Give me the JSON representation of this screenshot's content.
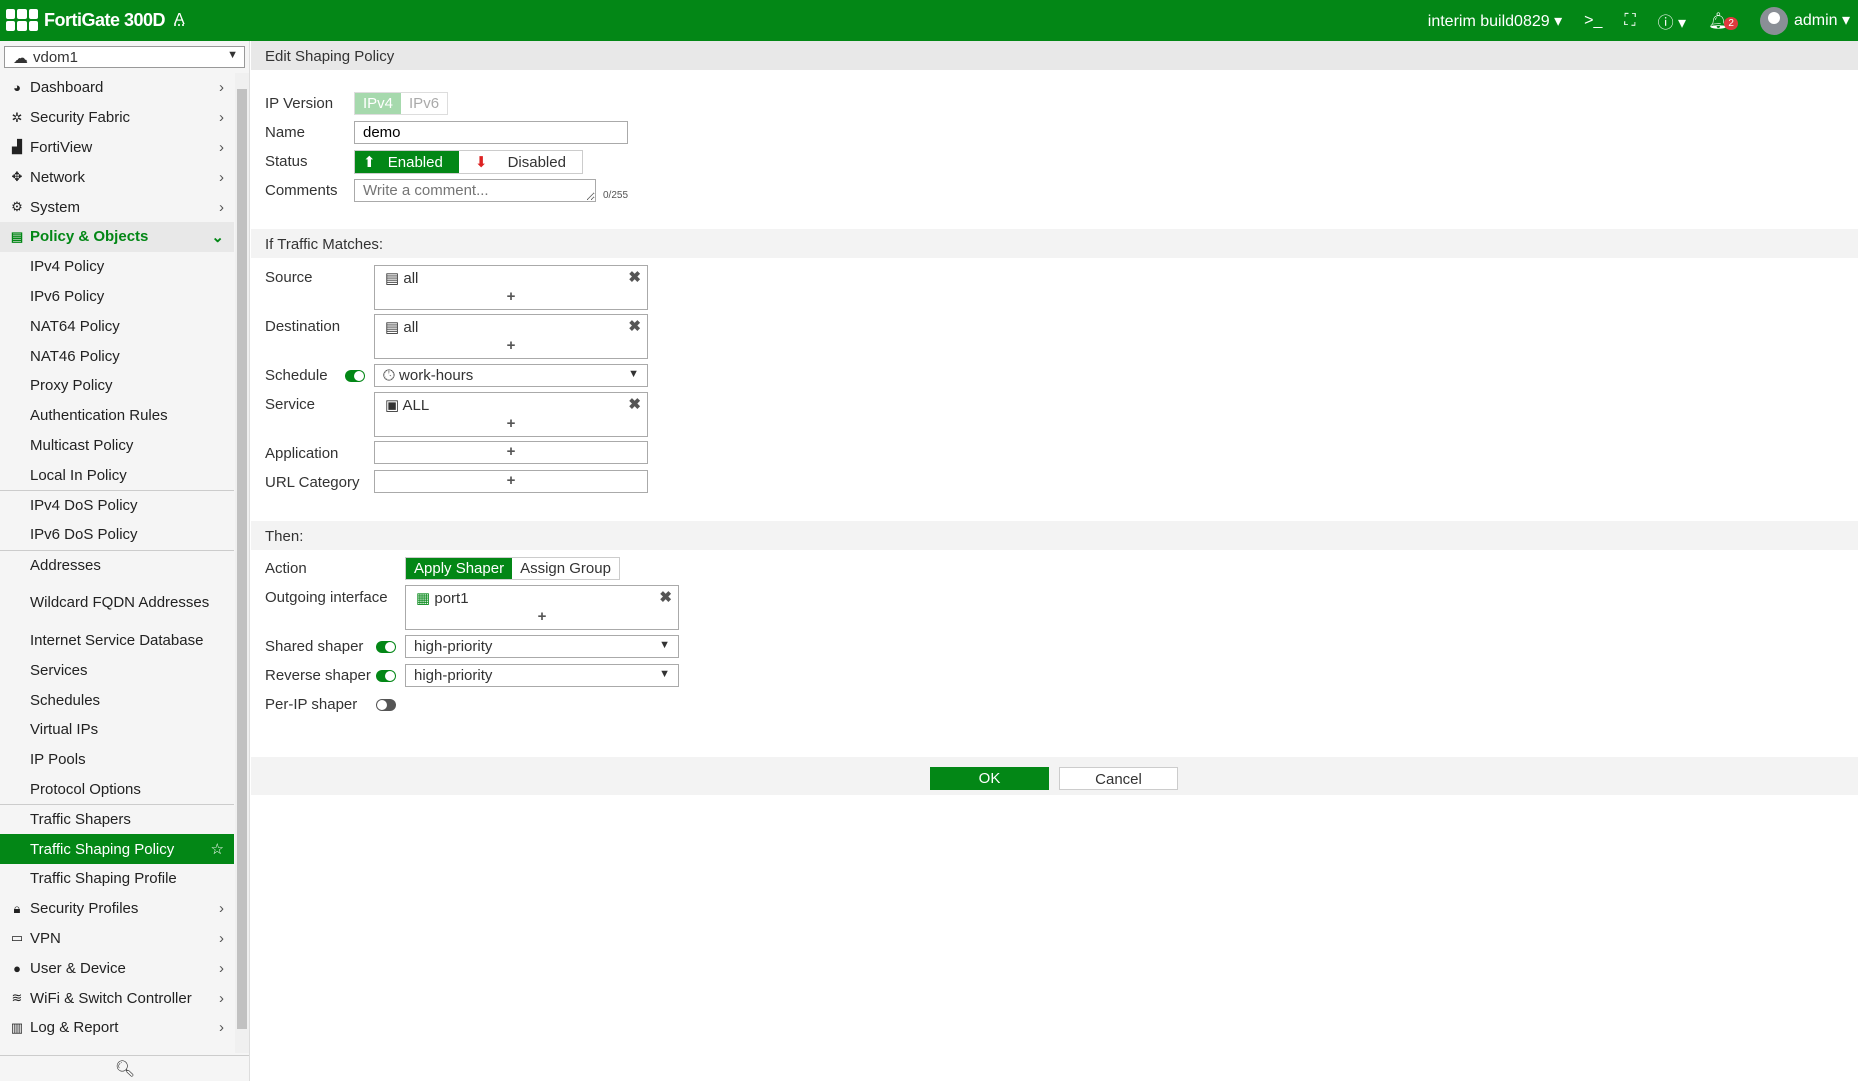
{
  "header": {
    "product": "FortiGate 300D",
    "a_label": "A",
    "build": "interim build0829",
    "cli_icon": "terminal-icon",
    "fullscreen_icon": "fullscreen-icon",
    "help_icon": "help-icon",
    "notifications": "2",
    "user": "admin",
    "accent": "#038716"
  },
  "sidebar": {
    "vdom": "vdom1",
    "items": [
      {
        "label": "Dashboard",
        "icon": "dashboard-icon",
        "chev": true
      },
      {
        "label": "Security Fabric",
        "icon": "fabric-icon",
        "chev": true
      },
      {
        "label": "FortiView",
        "icon": "chart-icon",
        "chev": true
      },
      {
        "label": "Network",
        "icon": "network-icon",
        "chev": true
      },
      {
        "label": "System",
        "icon": "gear-icon",
        "chev": true
      },
      {
        "label": "Policy & Objects",
        "icon": "policy-icon",
        "group": true
      },
      {
        "label": "IPv4 Policy"
      },
      {
        "label": "IPv6 Policy"
      },
      {
        "label": "NAT64 Policy"
      },
      {
        "label": "NAT46 Policy"
      },
      {
        "label": "Proxy Policy"
      },
      {
        "label": "Authentication Rules"
      },
      {
        "label": "Multicast Policy"
      },
      {
        "label": "Local In Policy"
      },
      {
        "label": "IPv4 DoS Policy",
        "divider": true
      },
      {
        "label": "IPv6 DoS Policy"
      },
      {
        "label": "Addresses",
        "divider": true
      },
      {
        "label": "Wildcard FQDN Addresses",
        "two": true
      },
      {
        "label": "Internet Service Database"
      },
      {
        "label": "Services"
      },
      {
        "label": "Schedules"
      },
      {
        "label": "Virtual IPs"
      },
      {
        "label": "IP Pools"
      },
      {
        "label": "Protocol Options"
      },
      {
        "label": "Traffic Shapers",
        "divider": true
      },
      {
        "label": "Traffic Shaping Policy",
        "active": true
      },
      {
        "label": "Traffic Shaping Profile"
      },
      {
        "label": "Security Profiles",
        "icon": "lock-icon",
        "chev": true
      },
      {
        "label": "VPN",
        "icon": "laptop-icon",
        "chev": true
      },
      {
        "label": "User & Device",
        "icon": "user-icon",
        "chev": true
      },
      {
        "label": "WiFi & Switch Controller",
        "icon": "wifi-icon",
        "chev": true
      },
      {
        "label": "Log & Report",
        "icon": "report-icon",
        "chev": true
      }
    ]
  },
  "page": {
    "title": "Edit Shaping Policy",
    "ip_version": {
      "label": "IP Version",
      "options": [
        "IPv4",
        "IPv6"
      ],
      "selected": "IPv4"
    },
    "name": {
      "label": "Name",
      "value": "demo"
    },
    "status": {
      "label": "Status",
      "enabled": "Enabled",
      "disabled": "Disabled",
      "selected": "Enabled"
    },
    "comments": {
      "label": "Comments",
      "placeholder": "Write a comment...",
      "count": "0/255"
    },
    "match_title": "If Traffic Matches:",
    "source": {
      "label": "Source",
      "value": "all"
    },
    "destination": {
      "label": "Destination",
      "value": "all"
    },
    "schedule": {
      "label": "Schedule",
      "value": "work-hours",
      "enabled": true
    },
    "service": {
      "label": "Service",
      "value": "ALL"
    },
    "application": {
      "label": "Application"
    },
    "url_category": {
      "label": "URL Category"
    },
    "then_title": "Then:",
    "action": {
      "label": "Action",
      "options": [
        "Apply Shaper",
        "Assign Group"
      ],
      "selected": "Apply Shaper"
    },
    "outgoing": {
      "label": "Outgoing interface",
      "value": "port1"
    },
    "shared": {
      "label": "Shared shaper",
      "value": "high-priority",
      "enabled": true
    },
    "reverse": {
      "label": "Reverse shaper",
      "value": "high-priority",
      "enabled": true
    },
    "perip": {
      "label": "Per-IP shaper",
      "enabled": false
    },
    "plus": "+",
    "remove": "✖",
    "ok": "OK",
    "cancel": "Cancel"
  }
}
